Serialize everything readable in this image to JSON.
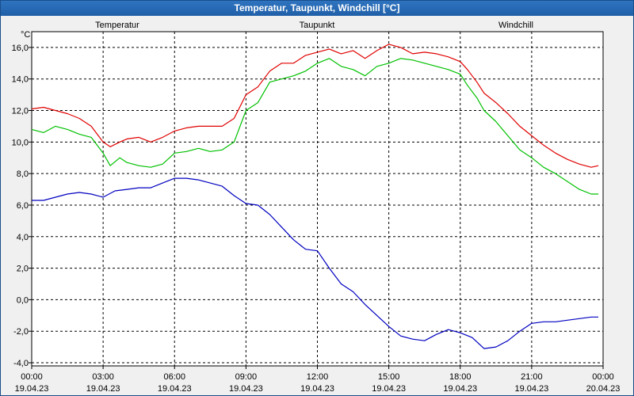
{
  "window": {
    "title": "Temperatur, Taupunkt, Windchill [°C]"
  },
  "chart_data": {
    "type": "line",
    "title": "Temperatur, Taupunkt, Windchill [°C]",
    "unit": "°C",
    "xlabel": "",
    "ylabel": "°C",
    "ylim": [
      -4.2,
      17.0
    ],
    "xlim": [
      0,
      24
    ],
    "grid": true,
    "x_ticks": [
      {
        "time": "00:00",
        "date": "19.04.23"
      },
      {
        "time": "03:00",
        "date": "19.04.23"
      },
      {
        "time": "06:00",
        "date": "19.04.23"
      },
      {
        "time": "09:00",
        "date": "19.04.23"
      },
      {
        "time": "12:00",
        "date": "19.04.23"
      },
      {
        "time": "15:00",
        "date": "19.04.23"
      },
      {
        "time": "18:00",
        "date": "19.04.23"
      },
      {
        "time": "21:00",
        "date": "19.04.23"
      },
      {
        "time": "00:00",
        "date": "20.04.23"
      }
    ],
    "y_ticks": [
      "16,0",
      "14,0",
      "12,0",
      "10,0",
      "8,0",
      "6,0",
      "4,0",
      "2,0",
      "0,0",
      "-2,0",
      "-4,0"
    ],
    "y_tick_values": [
      16,
      14,
      12,
      10,
      8,
      6,
      4,
      2,
      0,
      -2,
      -4
    ],
    "series": [
      {
        "name": "Temperatur",
        "color": "#e00000",
        "x": [
          0,
          0.5,
          1,
          1.5,
          2,
          2.5,
          3,
          3.3,
          3.7,
          4,
          4.5,
          5,
          5.5,
          6,
          6.5,
          7,
          7.5,
          8,
          8.5,
          9,
          9.5,
          10,
          10.5,
          11,
          11.5,
          12,
          12.5,
          13,
          13.5,
          14,
          14.5,
          15,
          15.5,
          16,
          16.5,
          17,
          17.5,
          18,
          18.3,
          18.7,
          19,
          19.5,
          20,
          20.5,
          21,
          21.5,
          22,
          22.5,
          23,
          23.5,
          23.8
        ],
        "y": [
          12.1,
          12.2,
          12.0,
          11.8,
          11.5,
          11.0,
          10.0,
          9.7,
          10.0,
          10.2,
          10.3,
          10.0,
          10.3,
          10.7,
          10.9,
          11.0,
          11.0,
          11.0,
          11.5,
          13.0,
          13.5,
          14.5,
          15.0,
          15.0,
          15.5,
          15.7,
          15.9,
          15.6,
          15.8,
          15.3,
          15.8,
          16.2,
          16.0,
          15.6,
          15.7,
          15.6,
          15.4,
          15.1,
          14.6,
          13.8,
          13.1,
          12.5,
          11.8,
          11.0,
          10.4,
          9.8,
          9.3,
          8.9,
          8.6,
          8.4,
          8.5
        ]
      },
      {
        "name": "Taupunkt",
        "color": "#0000c0",
        "x": [
          0,
          0.5,
          1,
          1.5,
          2,
          2.5,
          3,
          3.5,
          4,
          4.5,
          5,
          5.5,
          6,
          6.5,
          7,
          7.5,
          8,
          8.5,
          9,
          9.5,
          10,
          10.5,
          11,
          11.5,
          12,
          12.5,
          13,
          13.5,
          14,
          14.5,
          15,
          15.5,
          16,
          16.5,
          17,
          17.5,
          18,
          18.5,
          19,
          19.5,
          20,
          20.5,
          21,
          21.5,
          22,
          22.5,
          23,
          23.5,
          23.8
        ],
        "y": [
          6.3,
          6.3,
          6.5,
          6.7,
          6.8,
          6.7,
          6.5,
          6.9,
          7.0,
          7.1,
          7.1,
          7.4,
          7.7,
          7.7,
          7.6,
          7.4,
          7.2,
          6.6,
          6.1,
          6.0,
          5.4,
          4.6,
          3.8,
          3.2,
          3.1,
          2.0,
          1.0,
          0.5,
          -0.3,
          -1.0,
          -1.7,
          -2.3,
          -2.5,
          -2.6,
          -2.2,
          -1.9,
          -2.1,
          -2.4,
          -3.1,
          -3.0,
          -2.6,
          -2.0,
          -1.5,
          -1.4,
          -1.4,
          -1.3,
          -1.2,
          -1.1,
          -1.1
        ]
      },
      {
        "name": "Windchill",
        "color": "#00c000",
        "x": [
          0,
          0.5,
          1,
          1.5,
          2,
          2.5,
          3,
          3.3,
          3.7,
          4,
          4.5,
          5,
          5.5,
          6,
          6.5,
          7,
          7.5,
          8,
          8.5,
          9,
          9.5,
          10,
          10.5,
          11,
          11.5,
          12,
          12.5,
          13,
          13.5,
          14,
          14.5,
          15,
          15.5,
          16,
          16.5,
          17,
          17.5,
          18,
          18.3,
          18.7,
          19,
          19.5,
          20,
          20.5,
          21,
          21.5,
          22,
          22.5,
          23,
          23.5,
          23.8
        ],
        "y": [
          10.8,
          10.6,
          11.0,
          10.8,
          10.5,
          10.3,
          9.3,
          8.5,
          9.0,
          8.7,
          8.5,
          8.4,
          8.6,
          9.3,
          9.4,
          9.6,
          9.4,
          9.5,
          10.0,
          12.0,
          12.5,
          13.8,
          14.0,
          14.2,
          14.5,
          15.0,
          15.3,
          14.8,
          14.6,
          14.2,
          14.8,
          15.0,
          15.3,
          15.2,
          15.0,
          14.8,
          14.6,
          14.3,
          13.6,
          12.8,
          12.0,
          11.3,
          10.4,
          9.5,
          9.0,
          8.4,
          8.0,
          7.5,
          7.0,
          6.7,
          6.7
        ]
      }
    ]
  }
}
